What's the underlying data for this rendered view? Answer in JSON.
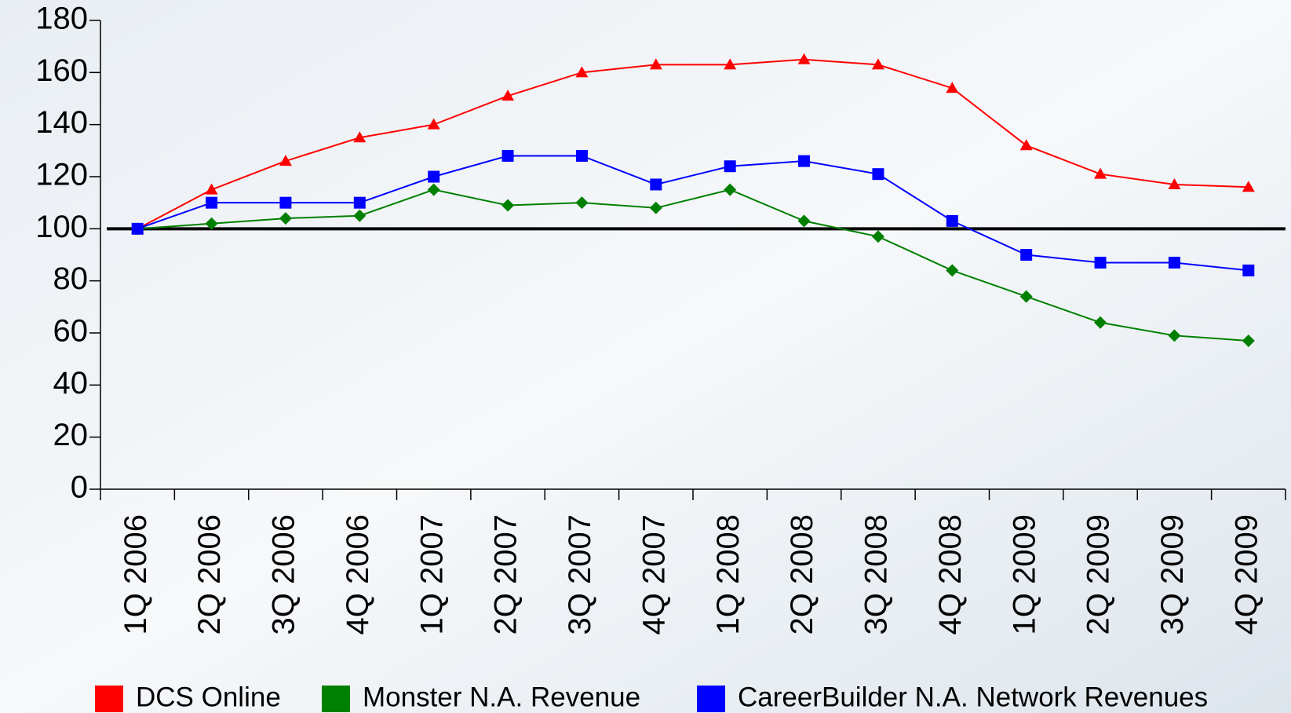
{
  "chart_data": {
    "type": "line",
    "categories": [
      "1Q 2006",
      "2Q 2006",
      "3Q 2006",
      "4Q 2006",
      "1Q 2007",
      "2Q 2007",
      "3Q 2007",
      "4Q 2007",
      "1Q 2008",
      "2Q 2008",
      "3Q 2008",
      "4Q 2008",
      "1Q 2009",
      "2Q 2009",
      "3Q 2009",
      "4Q 2009"
    ],
    "series": [
      {
        "name": "DCS Online",
        "color": "#ff0000",
        "marker": "triangle",
        "values": [
          100,
          115,
          126,
          135,
          140,
          151,
          160,
          163,
          163,
          165,
          163,
          154,
          132,
          121,
          117,
          116
        ]
      },
      {
        "name": "Monster N.A. Revenue",
        "color": "#008000",
        "marker": "diamond",
        "values": [
          100,
          102,
          104,
          105,
          115,
          109,
          110,
          108,
          115,
          103,
          97,
          84,
          74,
          64,
          59,
          57
        ]
      },
      {
        "name": "CareerBuilder N.A. Network Revenues",
        "color": "#0000ff",
        "marker": "square",
        "values": [
          100,
          110,
          110,
          110,
          120,
          128,
          128,
          117,
          124,
          126,
          121,
          103,
          90,
          87,
          87,
          84
        ]
      }
    ],
    "ylim": [
      0,
      180
    ],
    "yticks": [
      0,
      20,
      40,
      60,
      80,
      100,
      120,
      140,
      160,
      180
    ],
    "reference_line": 100,
    "legend": "bottom"
  }
}
